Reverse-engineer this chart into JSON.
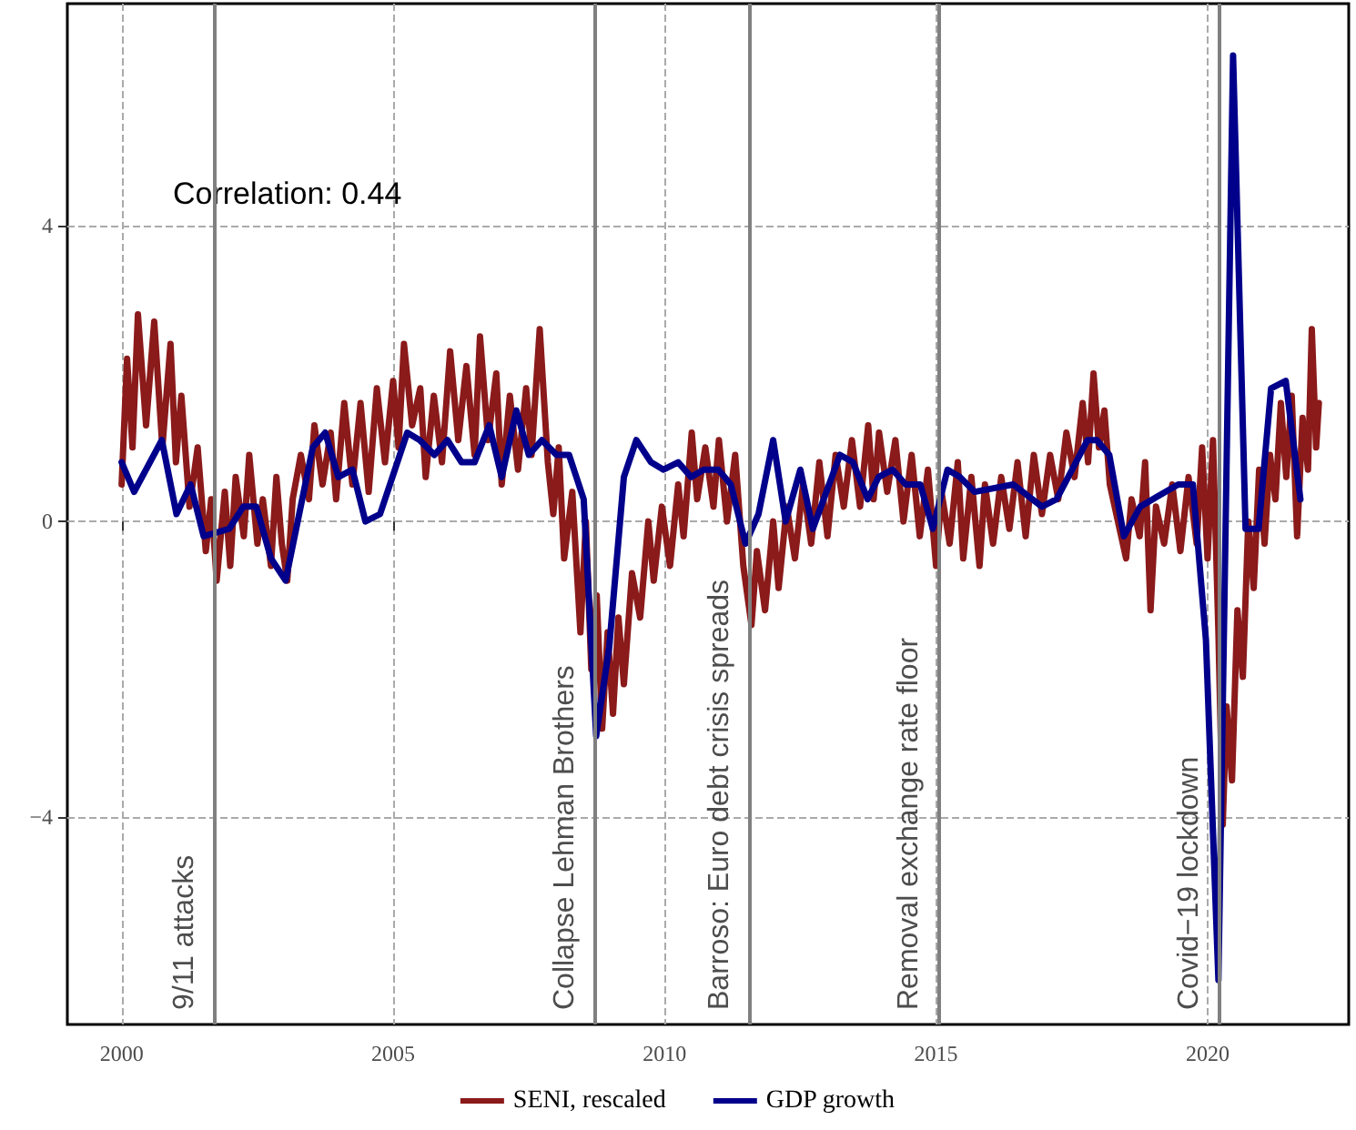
{
  "chart_data": {
    "type": "line",
    "xlim": [
      1999.0,
      2022.6
    ],
    "ylim": [
      -6.8,
      7.0
    ],
    "xticks": [
      2000,
      2005,
      2010,
      2015,
      2020
    ],
    "yticks": [
      -4,
      0,
      4
    ],
    "grid": true,
    "legend": "bottom",
    "marker": "none",
    "line_style": "solid",
    "annotations": [
      "Correlation: 0.44"
    ],
    "ref_lines": [
      {
        "axis": "x",
        "value": 2001.7,
        "label": "9/11 attacks",
        "color": "#808080"
      },
      {
        "axis": "x",
        "value": 2008.71,
        "label": "Collapse Lehman Brothers",
        "color": "#808080"
      },
      {
        "axis": "x",
        "value": 2011.56,
        "label": "Barroso: Euro debt crisis spreads",
        "color": "#808080"
      },
      {
        "axis": "x",
        "value": 2015.04,
        "label": "Removal exchange rate floor",
        "color": "#808080"
      },
      {
        "axis": "x",
        "value": 2020.2,
        "label": "Covid−19 lockdown",
        "color": "#808080"
      }
    ],
    "series": [
      {
        "name": "SENI, rescaled",
        "color": "#8b1a1a",
        "x": [
          2000.0,
          2000.1,
          2000.2,
          2000.3,
          2000.45,
          2000.6,
          2000.75,
          2000.9,
          2001.0,
          2001.1,
          2001.25,
          2001.4,
          2001.55,
          2001.65,
          2001.75,
          2001.9,
          2002.0,
          2002.1,
          2002.25,
          2002.35,
          2002.5,
          2002.6,
          2002.75,
          2002.85,
          2002.95,
          2003.05,
          2003.15,
          2003.3,
          2003.45,
          2003.55,
          2003.7,
          2003.85,
          2003.95,
          2004.1,
          2004.25,
          2004.4,
          2004.55,
          2004.7,
          2004.85,
          2005.0,
          2005.1,
          2005.2,
          2005.35,
          2005.5,
          2005.6,
          2005.75,
          2005.9,
          2006.05,
          2006.2,
          2006.35,
          2006.5,
          2006.6,
          2006.75,
          2006.9,
          2007.0,
          2007.15,
          2007.3,
          2007.45,
          2007.55,
          2007.7,
          2007.85,
          2007.95,
          2008.05,
          2008.15,
          2008.3,
          2008.45,
          2008.55,
          2008.65,
          2008.75,
          2008.85,
          2008.95,
          2009.05,
          2009.15,
          2009.25,
          2009.4,
          2009.55,
          2009.7,
          2009.8,
          2009.95,
          2010.1,
          2010.25,
          2010.35,
          2010.5,
          2010.6,
          2010.75,
          2010.9,
          2011.0,
          2011.15,
          2011.3,
          2011.45,
          2011.6,
          2011.7,
          2011.85,
          2012.0,
          2012.1,
          2012.25,
          2012.4,
          2012.55,
          2012.7,
          2012.85,
          2013.0,
          2013.15,
          2013.3,
          2013.45,
          2013.6,
          2013.75,
          2013.85,
          2013.95,
          2014.1,
          2014.25,
          2014.4,
          2014.55,
          2014.7,
          2014.85,
          2015.0,
          2015.1,
          2015.25,
          2015.4,
          2015.5,
          2015.65,
          2015.8,
          2015.9,
          2016.05,
          2016.2,
          2016.35,
          2016.5,
          2016.65,
          2016.8,
          2016.95,
          2017.1,
          2017.25,
          2017.4,
          2017.55,
          2017.7,
          2017.8,
          2017.9,
          2018.0,
          2018.1,
          2018.2,
          2018.35,
          2018.5,
          2018.6,
          2018.75,
          2018.85,
          2018.95,
          2019.05,
          2019.2,
          2019.35,
          2019.5,
          2019.65,
          2019.8,
          2019.9,
          2020.0,
          2020.1,
          2020.2,
          2020.28,
          2020.35,
          2020.45,
          2020.55,
          2020.65,
          2020.75,
          2020.85,
          2020.95,
          2021.05,
          2021.15,
          2021.25,
          2021.35,
          2021.45,
          2021.55,
          2021.65,
          2021.75,
          2021.85,
          2021.92,
          2022.0,
          2022.05
        ],
        "values": [
          0.5,
          2.2,
          1.0,
          2.8,
          1.3,
          2.7,
          1.0,
          2.4,
          0.8,
          1.7,
          0.2,
          1.0,
          -0.4,
          0.3,
          -0.8,
          0.4,
          -0.6,
          0.6,
          -0.2,
          0.9,
          -0.3,
          0.3,
          -0.6,
          0.6,
          -0.3,
          -0.8,
          0.3,
          0.9,
          0.3,
          1.3,
          0.5,
          1.2,
          0.3,
          1.6,
          0.5,
          1.6,
          0.4,
          1.8,
          0.8,
          1.9,
          1.0,
          2.4,
          1.3,
          1.8,
          0.6,
          1.7,
          0.8,
          2.3,
          1.1,
          2.1,
          0.9,
          2.5,
          1.1,
          2.0,
          0.5,
          1.7,
          0.7,
          1.8,
          0.9,
          2.6,
          0.8,
          0.1,
          1.0,
          -0.5,
          0.4,
          -1.5,
          0.0,
          -2.0,
          -1.0,
          -2.8,
          -1.5,
          -2.6,
          -1.3,
          -2.2,
          -0.7,
          -1.3,
          0.0,
          -0.8,
          0.2,
          -0.6,
          0.5,
          -0.2,
          1.2,
          0.3,
          1.0,
          0.2,
          1.1,
          0.0,
          0.9,
          -0.6,
          -1.4,
          -0.4,
          -1.2,
          0.0,
          -0.9,
          0.2,
          -0.5,
          0.5,
          -0.3,
          0.8,
          -0.2,
          0.9,
          0.2,
          1.1,
          0.2,
          1.3,
          0.3,
          1.2,
          0.4,
          1.1,
          0.0,
          0.9,
          -0.2,
          0.7,
          -0.6,
          0.4,
          -0.3,
          0.8,
          -0.5,
          0.6,
          -0.6,
          0.5,
          -0.3,
          0.6,
          -0.1,
          0.8,
          -0.2,
          0.9,
          0.1,
          0.9,
          0.3,
          1.2,
          0.6,
          1.6,
          0.8,
          2.0,
          1.0,
          1.5,
          0.5,
          0.0,
          -0.5,
          0.3,
          -0.2,
          0.8,
          -1.2,
          0.2,
          -0.3,
          0.5,
          -0.4,
          0.6,
          -0.3,
          1.0,
          -0.5,
          1.1,
          -1.5,
          -4.1,
          -2.5,
          -3.5,
          -1.2,
          -2.1,
          0.0,
          -0.9,
          0.7,
          -0.3,
          0.9,
          0.3,
          1.6,
          0.6,
          1.7,
          -0.2,
          1.4,
          0.7,
          2.6,
          1.0,
          1.6
        ]
      },
      {
        "name": "GDP growth",
        "color": "#00008b",
        "x": [
          2000.0,
          2000.23,
          2000.74,
          2001.01,
          2001.27,
          2001.51,
          2001.98,
          2002.24,
          2002.48,
          2002.75,
          2003.02,
          2003.52,
          2003.75,
          2003.99,
          2004.25,
          2004.49,
          2004.76,
          2005.26,
          2005.49,
          2005.76,
          2006.0,
          2006.26,
          2006.5,
          2006.77,
          2007.0,
          2007.27,
          2007.5,
          2007.74,
          2008.01,
          2008.24,
          2008.51,
          2008.74,
          2008.98,
          2009.25,
          2009.48,
          2009.75,
          2009.98,
          2010.25,
          2010.49,
          2010.72,
          2010.99,
          2011.22,
          2011.49,
          2011.73,
          2012.0,
          2012.23,
          2012.5,
          2012.73,
          2013.23,
          2013.47,
          2013.74,
          2013.94,
          2014.2,
          2014.44,
          2014.71,
          2014.94,
          2015.21,
          2015.44,
          2015.71,
          2016.42,
          2016.95,
          2017.22,
          2017.79,
          2017.96,
          2018.19,
          2018.46,
          2018.76,
          2018.99,
          2019.46,
          2019.73,
          2019.97,
          2020.2,
          2020.47,
          2020.7,
          2020.94,
          2021.17,
          2021.44,
          2021.71
        ],
        "values": [
          0.8,
          0.4,
          1.1,
          0.1,
          0.5,
          -0.2,
          -0.1,
          0.2,
          0.2,
          -0.5,
          -0.8,
          1.0,
          1.2,
          0.6,
          0.7,
          0.0,
          0.1,
          1.2,
          1.1,
          0.9,
          1.1,
          0.8,
          0.8,
          1.3,
          0.6,
          1.5,
          0.9,
          1.1,
          0.9,
          0.9,
          0.3,
          -2.9,
          -1.7,
          0.6,
          1.1,
          0.8,
          0.7,
          0.8,
          0.6,
          0.7,
          0.7,
          0.5,
          -0.3,
          0.1,
          1.1,
          0.0,
          0.7,
          -0.1,
          0.9,
          0.8,
          0.3,
          0.6,
          0.7,
          0.5,
          0.5,
          -0.1,
          0.7,
          0.6,
          0.4,
          0.5,
          0.2,
          0.3,
          1.1,
          1.1,
          0.9,
          -0.2,
          0.2,
          0.3,
          0.5,
          0.5,
          -1.6,
          -6.2,
          6.3,
          -0.1,
          -0.1,
          1.8,
          1.9,
          0.3
        ]
      }
    ]
  }
}
